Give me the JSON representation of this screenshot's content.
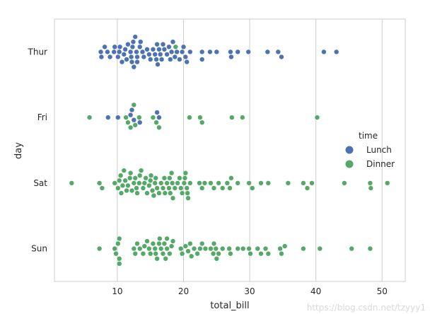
{
  "chart_data": {
    "type": "scatter",
    "subtype": "swarm",
    "xlabel": "total_bill",
    "ylabel": "day",
    "xlim": [
      0.5,
      53.5
    ],
    "x_ticks": [
      10,
      20,
      30,
      40,
      50
    ],
    "categories": [
      "Thur",
      "Fri",
      "Sat",
      "Sun"
    ],
    "grid": "vertical",
    "legend": {
      "title": "time",
      "position": "right"
    },
    "colors": {
      "Lunch": "#4c72b0",
      "Dinner": "#55a868"
    },
    "series": [
      {
        "name": "Lunch",
        "points": {
          "Thur": [
            7.5,
            7.6,
            8.1,
            8.5,
            8.9,
            9.5,
            9.6,
            10.1,
            10.3,
            10.4,
            10.7,
            11.0,
            11.2,
            11.4,
            11.6,
            12.0,
            12.1,
            12.2,
            12.3,
            12.4,
            12.5,
            12.7,
            12.9,
            13.0,
            13.0,
            13.4,
            13.5,
            13.8,
            14.0,
            14.5,
            14.8,
            15.0,
            15.4,
            15.7,
            15.9,
            16.0,
            16.1,
            16.3,
            16.5,
            16.7,
            16.9,
            17.1,
            17.5,
            17.8,
            18.0,
            18.2,
            18.4,
            18.7,
            19.0,
            19.4,
            19.8,
            20.0,
            20.3,
            20.5,
            21.0,
            22.8,
            22.8,
            24.0,
            25.0,
            27.1,
            27.2,
            28.2,
            29.8,
            32.7,
            34.3,
            34.8,
            41.2,
            43.1
          ],
          "Fri": [
            8.6,
            10.1,
            12.0,
            12.2,
            12.5,
            13.4,
            16.0,
            16.3
          ],
          "Sat": [],
          "Sun": []
        }
      },
      {
        "name": "Dinner",
        "points": {
          "Thur": [
            18.8
          ],
          "Fri": [
            5.8,
            11.3,
            11.6,
            12.0,
            12.5,
            12.7,
            13.3,
            15.4,
            15.9,
            16.3,
            20.9,
            22.5,
            22.8,
            27.3,
            28.9,
            40.2
          ],
          "Sat": [
            3.1,
            7.3,
            7.7,
            9.6,
            10.1,
            10.3,
            10.5,
            10.6,
            10.8,
            11.0,
            11.2,
            11.4,
            11.6,
            11.9,
            12.0,
            12.2,
            12.5,
            12.7,
            12.9,
            13.0,
            13.3,
            13.4,
            13.6,
            13.9,
            14.1,
            14.3,
            14.5,
            14.8,
            15.0,
            15.1,
            15.3,
            15.5,
            15.7,
            15.8,
            16.0,
            16.3,
            16.6,
            16.9,
            17.1,
            17.2,
            17.5,
            17.8,
            17.9,
            18.0,
            18.2,
            18.3,
            18.4,
            18.7,
            19.1,
            19.4,
            19.6,
            19.8,
            20.1,
            20.2,
            20.3,
            20.5,
            20.6,
            20.7,
            21.0,
            22.4,
            22.8,
            23.2,
            24.1,
            24.6,
            25.3,
            25.9,
            26.6,
            27.0,
            27.2,
            28.2,
            29.9,
            30.4,
            31.7,
            32.8,
            35.8,
            38.1,
            38.7,
            39.4,
            44.3,
            48.2,
            48.3,
            50.8
          ],
          "Sun": [
            7.3,
            9.6,
            9.8,
            10.1,
            10.3,
            10.3,
            10.3,
            12.5,
            12.7,
            13.0,
            13.4,
            13.9,
            14.1,
            14.5,
            14.8,
            15.0,
            15.4,
            15.7,
            15.8,
            16.0,
            16.3,
            16.4,
            16.6,
            16.9,
            17.1,
            17.3,
            17.5,
            17.5,
            17.9,
            18.2,
            18.4,
            19.6,
            19.8,
            20.3,
            20.7,
            21.0,
            21.2,
            21.6,
            22.1,
            22.5,
            22.8,
            23.3,
            24.1,
            24.5,
            24.6,
            24.9,
            25.0,
            25.3,
            25.9,
            26.9,
            27.1,
            28.2,
            29.0,
            29.9,
            30.1,
            31.2,
            31.7,
            32.4,
            32.8,
            34.6,
            34.8,
            35.3,
            38.1,
            40.6,
            45.4,
            48.2
          ]
        }
      }
    ]
  },
  "watermark": "https://blog.csdn.net/tzyyy1"
}
